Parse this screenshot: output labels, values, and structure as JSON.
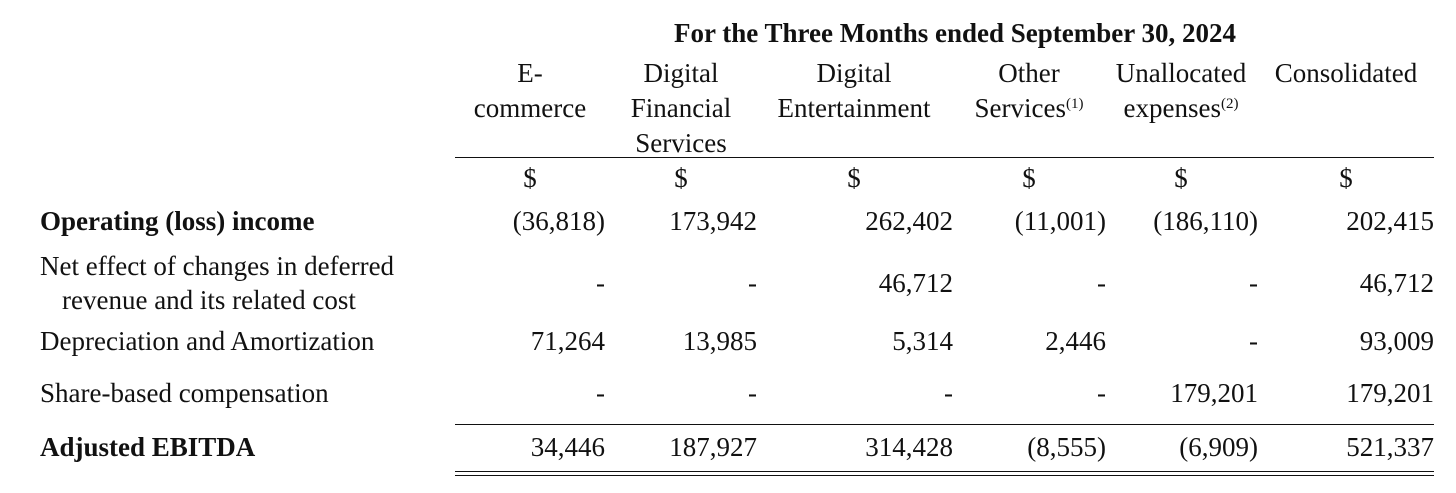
{
  "table": {
    "period_header": "For the Three Months ended September 30, 2024",
    "columns": [
      {
        "header_lines": [
          "E-",
          "commerce"
        ],
        "sup": "",
        "currency": "$"
      },
      {
        "header_lines": [
          "Digital",
          "Financial",
          "Services"
        ],
        "sup": "",
        "currency": "$"
      },
      {
        "header_lines": [
          "Digital",
          "Entertainment"
        ],
        "sup": "",
        "currency": "$"
      },
      {
        "header_lines": [
          "Other",
          "Services"
        ],
        "sup": "(1)",
        "currency": "$"
      },
      {
        "header_lines": [
          "Unallocated",
          "expenses"
        ],
        "sup": "(2)",
        "currency": "$"
      },
      {
        "header_lines": [
          "Consolidated"
        ],
        "sup": "",
        "currency": "$"
      }
    ],
    "rows": [
      {
        "label_lines": [
          "Operating (loss) income"
        ],
        "bold": true,
        "values": [
          "(36,818)",
          "173,942",
          "262,402",
          "(11,001)",
          "(186,110)",
          "202,415"
        ]
      },
      {
        "label_lines": [
          "Net effect of changes in deferred",
          "revenue and its related cost"
        ],
        "bold": false,
        "values": [
          "-",
          "-",
          "46,712",
          "-",
          "-",
          "46,712"
        ]
      },
      {
        "label_lines": [
          "Depreciation and Amortization"
        ],
        "bold": false,
        "values": [
          "71,264",
          "13,985",
          "5,314",
          "2,446",
          "-",
          "93,009"
        ]
      },
      {
        "label_lines": [
          "Share-based compensation"
        ],
        "bold": false,
        "values": [
          "-",
          "-",
          "-",
          "-",
          "179,201",
          "179,201"
        ]
      },
      {
        "label_lines": [
          "Adjusted EBITDA"
        ],
        "bold": true,
        "values": [
          "34,446",
          "187,927",
          "314,428",
          "(8,555)",
          "(6,909)",
          "521,337"
        ]
      }
    ]
  }
}
